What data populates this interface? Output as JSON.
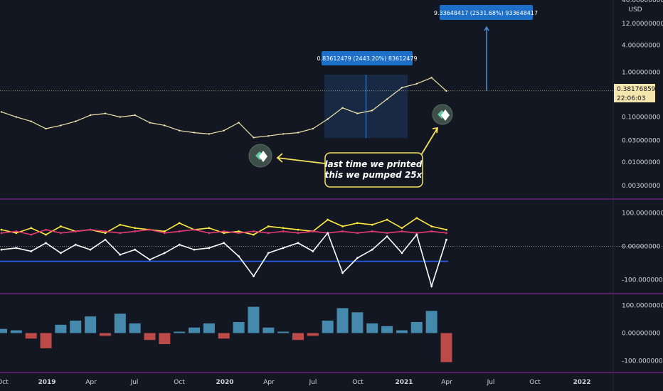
{
  "chart_data": [
    {
      "type": "line",
      "scale": "log",
      "ylim": [
        0.0015,
        40
      ],
      "axis_unit": "USD",
      "y_ticks": [
        {
          "value": 40,
          "label": "40.00000000"
        },
        {
          "value": 12,
          "label": "12.00000000"
        },
        {
          "value": 4,
          "label": "4.00000000"
        },
        {
          "value": 1,
          "label": "1.00000000"
        },
        {
          "value": 0.1,
          "label": "0.10000000"
        },
        {
          "value": 0.03,
          "label": "0.03000000"
        },
        {
          "value": 0.01,
          "label": "0.01000000"
        },
        {
          "value": 0.003,
          "label": "0.00300000"
        }
      ],
      "last_price": {
        "value": 0.38176859,
        "label": "0.38176859",
        "countdown": "22:06:03"
      },
      "x": [
        "2018-10",
        "2018-11",
        "2018-12",
        "2019-01",
        "2019-02",
        "2019-03",
        "2019-04",
        "2019-05",
        "2019-06",
        "2019-07",
        "2019-08",
        "2019-09",
        "2019-10",
        "2019-11",
        "2019-12",
        "2020-01",
        "2020-02",
        "2020-03",
        "2020-04",
        "2020-05",
        "2020-06",
        "2020-07",
        "2020-08",
        "2020-09",
        "2020-10",
        "2020-11",
        "2020-12",
        "2021-01",
        "2021-02",
        "2021-03",
        "2021-04"
      ],
      "series": [
        {
          "color": "#f3e5ab",
          "values": [
            0.13,
            0.1,
            0.08,
            0.055,
            0.065,
            0.08,
            0.11,
            0.12,
            0.1,
            0.11,
            0.075,
            0.065,
            0.05,
            0.045,
            0.042,
            0.05,
            0.075,
            0.035,
            0.038,
            0.042,
            0.045,
            0.055,
            0.09,
            0.16,
            0.12,
            0.14,
            0.25,
            0.45,
            0.55,
            0.75,
            0.38
          ]
        }
      ],
      "measurements": [
        {
          "label": "0.83612479 (2443.20%) 83612479",
          "from": 0.034,
          "to": 0.87
        },
        {
          "label": "9.33648417 (2531.68%) 933648417",
          "from": 0.38,
          "to": 10.0
        }
      ],
      "annotation": {
        "text_line1": "last time we printed",
        "text_line2": "this we pumped 25x"
      }
    },
    {
      "type": "line",
      "ylim": [
        -140,
        140
      ],
      "y_ticks": [
        {
          "value": 100,
          "label": "100.00000000"
        },
        {
          "value": 0,
          "label": "0.00000000"
        },
        {
          "value": -100,
          "label": "-100.00000000"
        }
      ],
      "series": [
        {
          "color": "#ffeb3b",
          "values": [
            50,
            40,
            55,
            35,
            60,
            45,
            50,
            40,
            65,
            55,
            50,
            45,
            70,
            50,
            55,
            40,
            45,
            35,
            60,
            55,
            50,
            45,
            80,
            60,
            70,
            65,
            80,
            55,
            85,
            60,
            50
          ]
        },
        {
          "color": "#e53974",
          "values": [
            40,
            45,
            35,
            50,
            40,
            45,
            50,
            45,
            40,
            45,
            50,
            40,
            45,
            50,
            40,
            45,
            40,
            45,
            40,
            45,
            40,
            45,
            40,
            45,
            40,
            45,
            40,
            45,
            40,
            45,
            40
          ]
        },
        {
          "color": "#ffffff",
          "values": [
            -10,
            -5,
            -15,
            10,
            -20,
            5,
            -10,
            20,
            -25,
            -10,
            -40,
            -20,
            5,
            -10,
            -5,
            10,
            -30,
            -90,
            -20,
            -5,
            10,
            -15,
            40,
            -80,
            -35,
            -10,
            30,
            -20,
            35,
            -120,
            20
          ]
        }
      ]
    },
    {
      "type": "bar",
      "ylim": [
        -140,
        140
      ],
      "y_ticks": [
        {
          "value": 100,
          "label": "100.00000000"
        },
        {
          "value": 0,
          "label": "0.00000000"
        },
        {
          "value": -100,
          "label": "-100.00000000"
        }
      ],
      "series": [
        {
          "values": [
            15,
            10,
            -20,
            -55,
            30,
            45,
            60,
            -10,
            70,
            35,
            -25,
            -40,
            5,
            20,
            35,
            -20,
            40,
            95,
            20,
            5,
            -25,
            -10,
            45,
            90,
            75,
            35,
            25,
            10,
            40,
            80,
            -105
          ]
        }
      ]
    }
  ],
  "x_axis": {
    "labels": [
      {
        "text": "Oct",
        "year": false
      },
      {
        "text": "2019",
        "year": true
      },
      {
        "text": "Apr",
        "year": false
      },
      {
        "text": "Jul",
        "year": false
      },
      {
        "text": "Oct",
        "year": false
      },
      {
        "text": "2020",
        "year": true
      },
      {
        "text": "Apr",
        "year": false
      },
      {
        "text": "Jul",
        "year": false
      },
      {
        "text": "Oct",
        "year": false
      },
      {
        "text": "2021",
        "year": true
      },
      {
        "text": "Apr",
        "year": false
      },
      {
        "text": "Jul",
        "year": false
      },
      {
        "text": "Oct",
        "year": false
      },
      {
        "text": "2022",
        "year": true
      }
    ]
  },
  "colors": {
    "background": "#131722",
    "price_line": "#f3e5ab",
    "measure_fill": "#1e3a5f",
    "measure_label": "#1e6fc7",
    "note_border": "#f5e35a",
    "pane_border": "#9c27b0",
    "oscillator_yellow": "#ffeb3b",
    "oscillator_pink": "#e53974",
    "oscillator_white": "#ffffff",
    "blue_line": "#2962ff",
    "histogram_pos": "#4f9ec4",
    "histogram_neg": "#d9534f"
  }
}
